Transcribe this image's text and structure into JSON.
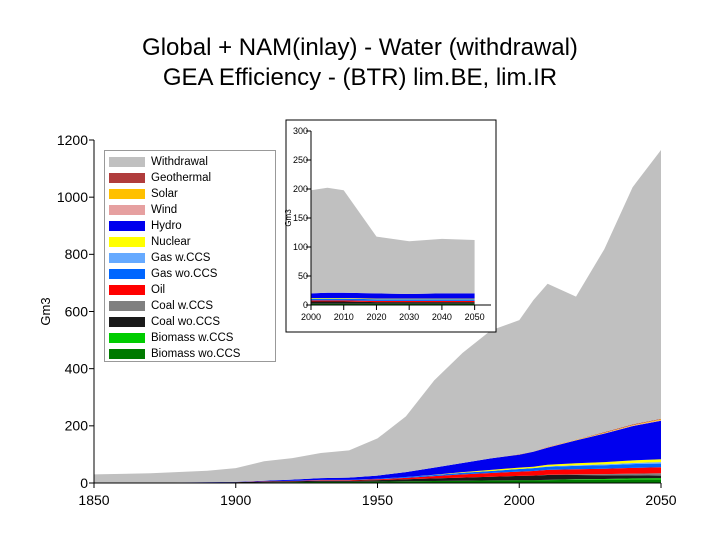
{
  "title_line1": "Global + NAM(inlay) - Water (withdrawal)",
  "title_line2": "GEA Efficiency - (BTR) lim.BE, lim.IR",
  "chart_data": [
    {
      "type": "area",
      "stacked": true,
      "ylabel": "Gm3",
      "xlim": [
        1850,
        2050
      ],
      "ylim": [
        0,
        1200
      ],
      "xticks": [
        1850,
        1900,
        1950,
        2000,
        2050
      ],
      "yticks": [
        0,
        200,
        400,
        600,
        800,
        1000,
        1200
      ],
      "legend_position": "top-left",
      "x": [
        1850,
        1870,
        1890,
        1900,
        1910,
        1920,
        1930,
        1940,
        1950,
        1960,
        1970,
        1980,
        1990,
        2000,
        2005,
        2010,
        2020,
        2030,
        2040,
        2050
      ],
      "series": [
        {
          "name": "Biomass wo.CCS",
          "color": "#007A00",
          "values": [
            0,
            0,
            1,
            1,
            2,
            3,
            4,
            4,
            5,
            6,
            7,
            8,
            9,
            10,
            10,
            10,
            11,
            11,
            12,
            12
          ]
        },
        {
          "name": "Biomass w.CCS",
          "color": "#00CC00",
          "values": [
            0,
            0,
            0,
            0,
            0,
            0,
            0,
            0,
            0,
            0,
            0,
            0,
            0,
            0,
            0,
            1,
            2,
            3,
            4,
            5
          ]
        },
        {
          "name": "Coal wo.CCS",
          "color": "#1A1A1A",
          "values": [
            0,
            1,
            1,
            2,
            3,
            3,
            4,
            4,
            5,
            7,
            9,
            11,
            13,
            15,
            16,
            17,
            15,
            13,
            11,
            9
          ]
        },
        {
          "name": "Coal w.CCS",
          "color": "#808080",
          "values": [
            0,
            0,
            0,
            0,
            0,
            0,
            0,
            0,
            0,
            0,
            0,
            0,
            0,
            0,
            0,
            1,
            2,
            4,
            6,
            8
          ]
        },
        {
          "name": "Oil",
          "color": "#FF0000",
          "values": [
            0,
            0,
            0,
            0,
            1,
            1,
            2,
            2,
            3,
            5,
            8,
            11,
            13,
            15,
            16,
            17,
            18,
            19,
            20,
            21
          ]
        },
        {
          "name": "Gas wo.CCS",
          "color": "#0066FF",
          "values": [
            0,
            0,
            0,
            0,
            0,
            1,
            1,
            1,
            2,
            3,
            4,
            6,
            7,
            9,
            10,
            11,
            12,
            12,
            13,
            13
          ]
        },
        {
          "name": "Gas w.CCS",
          "color": "#66AAFF",
          "values": [
            0,
            0,
            0,
            0,
            0,
            0,
            0,
            0,
            0,
            0,
            0,
            0,
            0,
            0,
            0,
            1,
            2,
            3,
            4,
            5
          ]
        },
        {
          "name": "Nuclear",
          "color": "#FFFF00",
          "values": [
            0,
            0,
            0,
            0,
            0,
            0,
            0,
            0,
            0,
            0,
            1,
            2,
            4,
            5,
            5,
            6,
            7,
            8,
            9,
            10
          ]
        },
        {
          "name": "Hydro",
          "color": "#0000EE",
          "values": [
            0,
            0,
            1,
            1,
            2,
            4,
            6,
            8,
            11,
            17,
            25,
            32,
            40,
            45,
            52,
            60,
            80,
            100,
            120,
            135
          ]
        },
        {
          "name": "Wind",
          "color": "#E6A0A0",
          "values": [
            0,
            0,
            0,
            0,
            0,
            0,
            0,
            0,
            0,
            0,
            0,
            0,
            0,
            0,
            0,
            1,
            1,
            1,
            2,
            2
          ]
        },
        {
          "name": "Solar",
          "color": "#FFC000",
          "values": [
            0,
            0,
            0,
            0,
            0,
            0,
            0,
            0,
            0,
            0,
            0,
            0,
            0,
            0,
            0,
            1,
            1,
            2,
            2,
            3
          ]
        },
        {
          "name": "Geothermal",
          "color": "#B03C3C",
          "values": [
            0,
            0,
            0,
            0,
            0,
            0,
            0,
            0,
            0,
            0,
            0,
            0,
            0,
            1,
            1,
            1,
            1,
            2,
            2,
            2
          ]
        },
        {
          "name": "Withdrawal",
          "color": "#C0C0C0",
          "values": [
            30,
            33,
            40,
            48,
            68,
            75,
            88,
            95,
            130,
            195,
            305,
            385,
            448,
            470,
            530,
            570,
            500,
            640,
            830,
            940
          ]
        }
      ]
    },
    {
      "type": "area",
      "stacked": true,
      "ylabel": "Gm3",
      "xlim": [
        2000,
        2055
      ],
      "ylim": [
        0,
        300
      ],
      "xticks": [
        2000,
        2010,
        2020,
        2030,
        2040,
        2050
      ],
      "yticks": [
        0,
        50,
        100,
        150,
        200,
        250,
        300
      ],
      "x": [
        2000,
        2005,
        2010,
        2020,
        2030,
        2040,
        2050
      ],
      "series": [
        {
          "name": "Biomass wo.CCS",
          "color": "#007A00",
          "values": [
            2,
            2,
            2,
            2,
            2,
            2,
            2
          ]
        },
        {
          "name": "Coal wo.CCS",
          "color": "#1A1A1A",
          "values": [
            4,
            4,
            4,
            3,
            3,
            3,
            3
          ]
        },
        {
          "name": "Oil",
          "color": "#FF0000",
          "values": [
            2,
            2,
            2,
            2,
            2,
            2,
            2
          ]
        },
        {
          "name": "Gas wo.CCS",
          "color": "#0066FF",
          "values": [
            3,
            3,
            3,
            3,
            3,
            3,
            3
          ]
        },
        {
          "name": "Nuclear",
          "color": "#FFFF00",
          "values": [
            1,
            1,
            1,
            1,
            1,
            1,
            1
          ]
        },
        {
          "name": "Hydro",
          "color": "#0000EE",
          "values": [
            8,
            9,
            9,
            9,
            8,
            9,
            9
          ]
        },
        {
          "name": "Withdrawal",
          "color": "#C0C0C0",
          "values": [
            178,
            181,
            177,
            98,
            91,
            94,
            92
          ]
        }
      ]
    }
  ]
}
